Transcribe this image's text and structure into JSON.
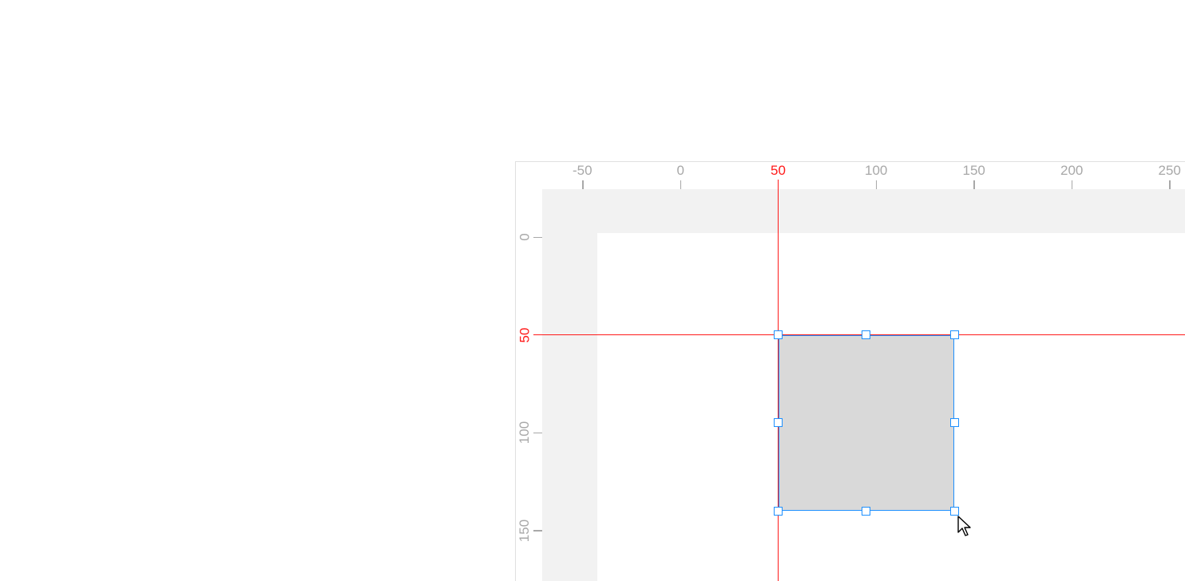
{
  "canvas": {
    "horizontal_ruler": {
      "ticks": [
        "-50",
        "0",
        "50",
        "100",
        "150",
        "200",
        "250"
      ],
      "highlighted": "50"
    },
    "vertical_ruler": {
      "ticks": [
        "0",
        "50",
        "100",
        "150"
      ],
      "highlighted": "50"
    },
    "guides": {
      "vertical_x": 50,
      "horizontal_y": 50
    },
    "selected_shape": {
      "type": "rectangle",
      "x": 50,
      "y": 50,
      "width": 90,
      "height": 90,
      "fill": "#d9d9d9",
      "selection_color": "#1e90ff"
    },
    "guide_color": "#ff1a1a",
    "cursor": "arrow-pointer"
  }
}
